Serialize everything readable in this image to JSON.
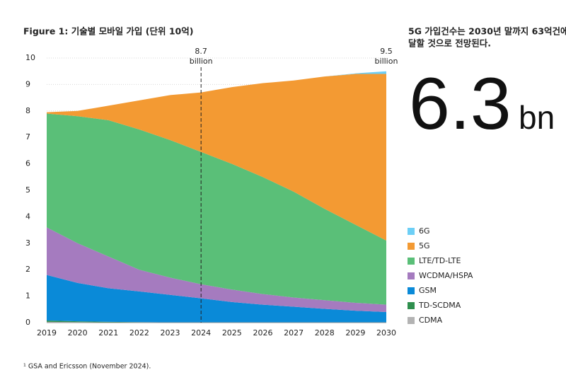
{
  "chart_data": {
    "type": "stacked_area",
    "title": "Figure 1: 기술별 모바일 가입 (단위 10억)",
    "categories": [
      "2019",
      "2020",
      "2021",
      "2022",
      "2023",
      "2024",
      "2025",
      "2026",
      "2027",
      "2028",
      "2029",
      "2030"
    ],
    "series": [
      {
        "name": "CDMA",
        "color": "#b3b3b3",
        "values": [
          0.03,
          0.02,
          0.01,
          0.01,
          0,
          0,
          0,
          0,
          0,
          0,
          0,
          0
        ]
      },
      {
        "name": "TD-SCDMA",
        "color": "#2f8f4e",
        "values": [
          0.05,
          0.03,
          0.02,
          0.01,
          0.01,
          0,
          0,
          0,
          0,
          0,
          0,
          0
        ]
      },
      {
        "name": "GSM",
        "color": "#0a8ad8",
        "values": [
          1.72,
          1.45,
          1.27,
          1.16,
          1.04,
          0.92,
          0.78,
          0.68,
          0.6,
          0.52,
          0.45,
          0.4
        ]
      },
      {
        "name": "WCDMA/HSPA",
        "color": "#a57bbf",
        "values": [
          1.8,
          1.5,
          1.2,
          0.82,
          0.65,
          0.53,
          0.47,
          0.4,
          0.35,
          0.33,
          0.3,
          0.28
        ]
      },
      {
        "name": "LTE/TD-LTE",
        "color": "#5abf78",
        "values": [
          4.3,
          4.8,
          5.15,
          5.3,
          5.2,
          5.0,
          4.75,
          4.42,
          4.0,
          3.45,
          2.95,
          2.42
        ]
      },
      {
        "name": "5G",
        "color": "#f39a33",
        "values": [
          0.05,
          0.2,
          0.55,
          1.1,
          1.7,
          2.25,
          2.9,
          3.55,
          4.2,
          5.0,
          5.7,
          6.3
        ]
      },
      {
        "name": "6G",
        "color": "#6dcff6",
        "values": [
          0,
          0,
          0,
          0,
          0,
          0,
          0,
          0,
          0,
          0,
          0.02,
          0.1
        ]
      }
    ],
    "ylim": [
      0,
      10
    ],
    "yticks": [
      0,
      1,
      2,
      3,
      4,
      5,
      6,
      7,
      8,
      9,
      10
    ],
    "grid": true,
    "annotations": [
      {
        "x": "2024",
        "value": 8.7,
        "unit": "billion",
        "dashed_line": true
      },
      {
        "x": "2030",
        "value": 9.5,
        "unit": "billion",
        "dashed_line": false
      }
    ],
    "highlight": {
      "text_lines": [
        "5G 가입건수는 2030년 말까지 63억건에",
        "달할 것으로 전망된다."
      ],
      "value": 6.3,
      "unit": "bn"
    },
    "footnote": "¹ GSA and Ericsson (November 2024)."
  }
}
